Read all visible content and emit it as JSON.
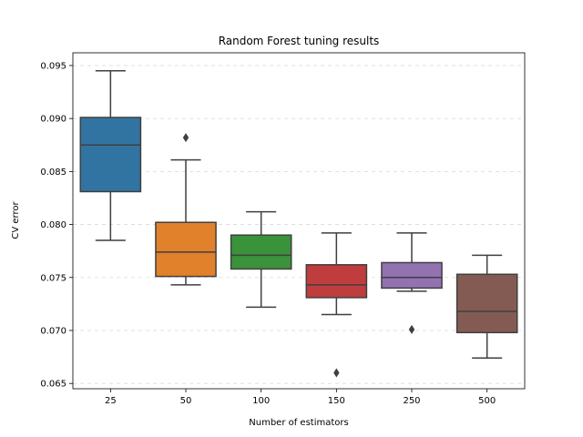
{
  "chart_data": {
    "type": "box",
    "title": "Random Forest tuning results",
    "xlabel": "Number of estimators",
    "ylabel": "CV error",
    "ylim": [
      0.0645,
      0.0962
    ],
    "yticks": [
      0.065,
      0.07,
      0.075,
      0.08,
      0.085,
      0.09,
      0.095
    ],
    "ytick_labels": [
      "0.065",
      "0.070",
      "0.075",
      "0.080",
      "0.085",
      "0.090",
      "0.095"
    ],
    "grid": "y-dashed",
    "categories": [
      "25",
      "50",
      "100",
      "150",
      "250",
      "500"
    ],
    "boxes": [
      {
        "category": "25",
        "color": "#3274a1",
        "whisker_low": 0.0785,
        "q1": 0.0831,
        "median": 0.0875,
        "q3": 0.0901,
        "whisker_high": 0.0945,
        "outliers": []
      },
      {
        "category": "50",
        "color": "#e1812c",
        "whisker_low": 0.0743,
        "q1": 0.0751,
        "median": 0.0774,
        "q3": 0.0802,
        "whisker_high": 0.0861,
        "outliers": [
          0.0882
        ]
      },
      {
        "category": "100",
        "color": "#3a923a",
        "whisker_low": 0.0722,
        "q1": 0.0758,
        "median": 0.0771,
        "q3": 0.079,
        "whisker_high": 0.0812,
        "outliers": []
      },
      {
        "category": "150",
        "color": "#c03d3e",
        "whisker_low": 0.0715,
        "q1": 0.0731,
        "median": 0.0743,
        "q3": 0.0762,
        "whisker_high": 0.0792,
        "outliers": [
          0.066
        ]
      },
      {
        "category": "250",
        "color": "#9372b2",
        "whisker_low": 0.0737,
        "q1": 0.074,
        "median": 0.075,
        "q3": 0.0764,
        "whisker_high": 0.0792,
        "outliers": [
          0.0701
        ]
      },
      {
        "category": "500",
        "color": "#845b53",
        "whisker_low": 0.0674,
        "q1": 0.0698,
        "median": 0.0718,
        "q3": 0.0753,
        "whisker_high": 0.0771,
        "outliers": []
      }
    ]
  }
}
